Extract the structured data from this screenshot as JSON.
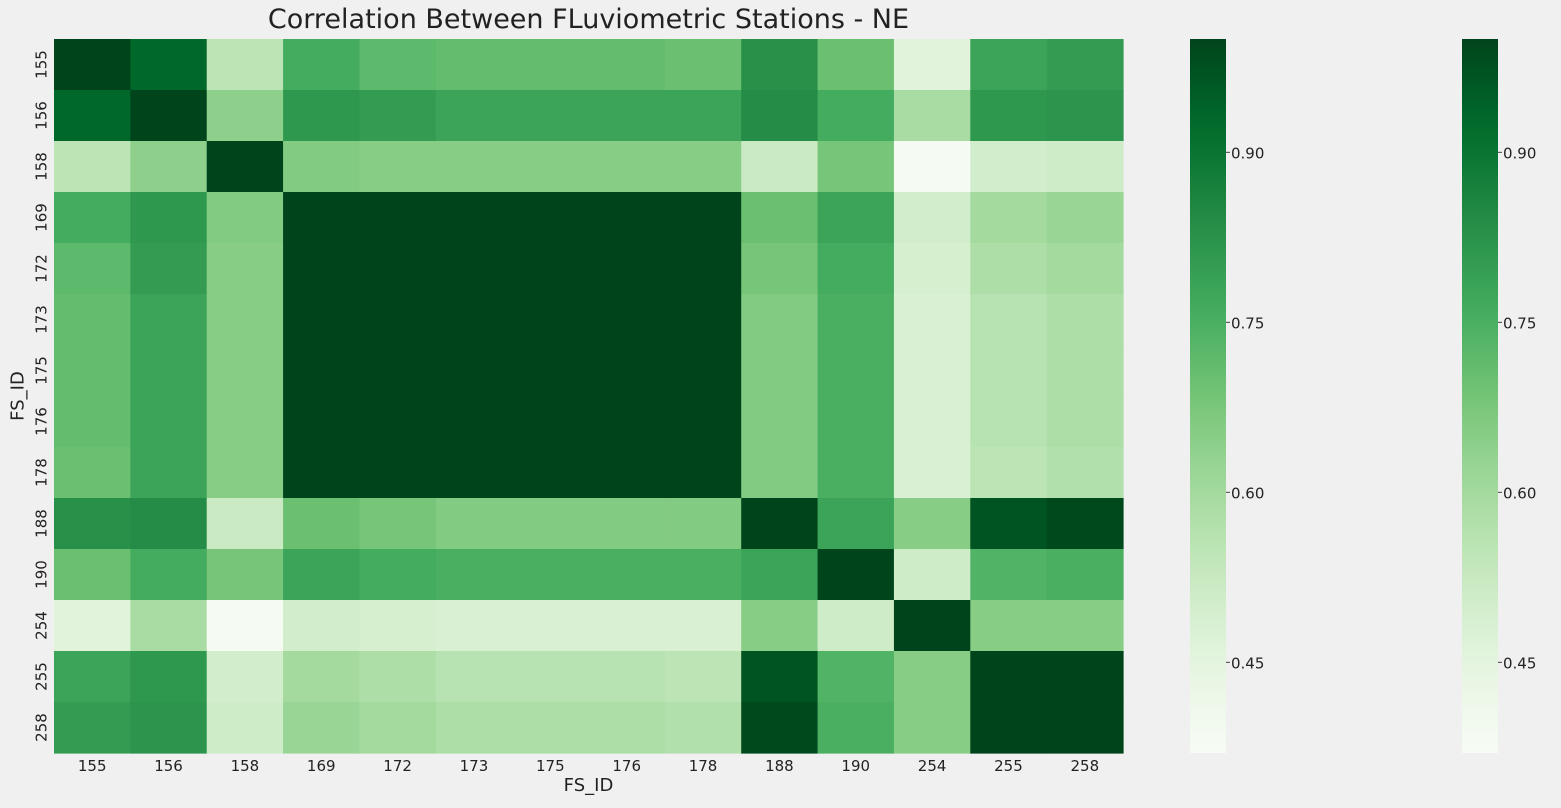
{
  "chart_data": {
    "type": "heatmap",
    "title": "Correlation Between FLuviometric Stations - NE",
    "xlabel": "FS_ID",
    "ylabel": "FS_ID",
    "x_labels": [
      "155",
      "156",
      "158",
      "169",
      "172",
      "173",
      "175",
      "176",
      "178",
      "188",
      "190",
      "254",
      "255",
      "258"
    ],
    "y_labels": [
      "155",
      "156",
      "158",
      "169",
      "172",
      "173",
      "175",
      "176",
      "178",
      "188",
      "190",
      "254",
      "255",
      "258"
    ],
    "values": [
      [
        1.0,
        0.93,
        0.55,
        0.76,
        0.72,
        0.71,
        0.71,
        0.71,
        0.7,
        0.83,
        0.7,
        0.46,
        0.78,
        0.8
      ],
      [
        0.93,
        1.0,
        0.64,
        0.81,
        0.8,
        0.78,
        0.78,
        0.78,
        0.78,
        0.84,
        0.76,
        0.59,
        0.81,
        0.82
      ],
      [
        0.55,
        0.64,
        1.0,
        0.66,
        0.65,
        0.65,
        0.65,
        0.65,
        0.65,
        0.52,
        0.68,
        0.38,
        0.5,
        0.51
      ],
      [
        0.76,
        0.81,
        0.66,
        1.0,
        1.0,
        1.0,
        1.0,
        1.0,
        1.0,
        0.7,
        0.78,
        0.5,
        0.6,
        0.62
      ],
      [
        0.72,
        0.8,
        0.65,
        1.0,
        1.0,
        1.0,
        1.0,
        1.0,
        1.0,
        0.68,
        0.76,
        0.49,
        0.58,
        0.6
      ],
      [
        0.71,
        0.78,
        0.65,
        1.0,
        1.0,
        1.0,
        1.0,
        1.0,
        1.0,
        0.66,
        0.75,
        0.48,
        0.56,
        0.58
      ],
      [
        0.71,
        0.78,
        0.65,
        1.0,
        1.0,
        1.0,
        1.0,
        1.0,
        1.0,
        0.66,
        0.75,
        0.48,
        0.56,
        0.58
      ],
      [
        0.71,
        0.78,
        0.65,
        1.0,
        1.0,
        1.0,
        1.0,
        1.0,
        1.0,
        0.66,
        0.75,
        0.48,
        0.56,
        0.58
      ],
      [
        0.7,
        0.78,
        0.65,
        1.0,
        1.0,
        1.0,
        1.0,
        1.0,
        1.0,
        0.66,
        0.75,
        0.48,
        0.55,
        0.57
      ],
      [
        0.83,
        0.84,
        0.52,
        0.7,
        0.68,
        0.66,
        0.66,
        0.66,
        0.66,
        1.0,
        0.78,
        0.65,
        0.97,
        0.99
      ],
      [
        0.7,
        0.76,
        0.68,
        0.78,
        0.76,
        0.75,
        0.75,
        0.75,
        0.75,
        0.78,
        1.0,
        0.51,
        0.74,
        0.75
      ],
      [
        0.46,
        0.59,
        0.38,
        0.5,
        0.49,
        0.48,
        0.48,
        0.48,
        0.48,
        0.65,
        0.51,
        1.0,
        0.65,
        0.65
      ],
      [
        0.78,
        0.81,
        0.5,
        0.6,
        0.58,
        0.56,
        0.56,
        0.56,
        0.55,
        0.97,
        0.74,
        0.65,
        1.0,
        1.0
      ],
      [
        0.8,
        0.82,
        0.51,
        0.62,
        0.6,
        0.58,
        0.58,
        0.58,
        0.57,
        0.99,
        0.75,
        0.65,
        1.0,
        1.0
      ]
    ],
    "colormap": "Greens",
    "colorbar": {
      "ticks": [
        0.45,
        0.6,
        0.75,
        0.9
      ],
      "tick_labels": [
        "0.45",
        "0.60",
        "0.75",
        "0.90"
      ],
      "range": [
        0.37,
        1.0
      ],
      "count": 2
    },
    "grid": false,
    "background": "#f0f0f0"
  }
}
